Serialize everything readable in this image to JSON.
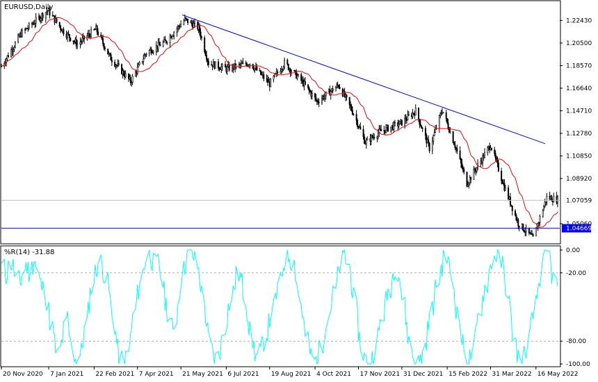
{
  "chart_data": [
    {
      "type": "candlestick",
      "title": "EURUSD,Daily",
      "symbol": "EURUSD",
      "timeframe": "Daily",
      "ylim": [
        1.034,
        1.24
      ],
      "y_ticks": [
        "1.22430",
        "1.20500",
        "1.18570",
        "1.16640",
        "1.14710",
        "1.12780",
        "1.10850",
        "1.08920",
        "1.05060"
      ],
      "x_ticks": [
        "20 Nov 2020",
        "7 Jan 2021",
        "22 Feb 2021",
        "7 Apr 2021",
        "21 May 2021",
        "6 Jul 2021",
        "19 Aug 2021",
        "4 Oct 2021",
        "17 Nov 2021",
        "31 Dec 2021",
        "15 Feb 2022",
        "31 Mar 2022",
        "16 May 2022"
      ],
      "series": [
        {
          "kind": "price",
          "points": [
            {
              "date": "20 Nov 2020",
              "close": 1.185
            },
            {
              "date": "10 Dec 2020",
              "close": 1.213
            },
            {
              "date": "6 Jan 2021",
              "close": 1.233
            },
            {
              "date": "22 Jan 2021",
              "close": 1.215
            },
            {
              "date": "5 Feb 2021",
              "close": 1.204
            },
            {
              "date": "24 Feb 2021",
              "close": 1.217
            },
            {
              "date": "10 Mar 2021",
              "close": 1.193
            },
            {
              "date": "31 Mar 2021",
              "close": 1.172
            },
            {
              "date": "16 Apr 2021",
              "close": 1.197
            },
            {
              "date": "5 May 2021",
              "close": 1.206
            },
            {
              "date": "25 May 2021",
              "close": 1.225
            },
            {
              "date": "8 Jun 2021",
              "close": 1.218
            },
            {
              "date": "18 Jun 2021",
              "close": 1.188
            },
            {
              "date": "6 Jul 2021",
              "close": 1.183
            },
            {
              "date": "30 Jul 2021",
              "close": 1.188
            },
            {
              "date": "19 Aug 2021",
              "close": 1.17
            },
            {
              "date": "3 Sep 2021",
              "close": 1.188
            },
            {
              "date": "20 Sep 2021",
              "close": 1.173
            },
            {
              "date": "6 Oct 2021",
              "close": 1.155
            },
            {
              "date": "28 Oct 2021",
              "close": 1.169
            },
            {
              "date": "12 Nov 2021",
              "close": 1.145
            },
            {
              "date": "24 Nov 2021",
              "close": 1.12
            },
            {
              "date": "8 Dec 2021",
              "close": 1.129
            },
            {
              "date": "31 Dec 2021",
              "close": 1.137
            },
            {
              "date": "14 Jan 2022",
              "close": 1.147
            },
            {
              "date": "28 Jan 2022",
              "close": 1.115
            },
            {
              "date": "10 Feb 2022",
              "close": 1.148
            },
            {
              "date": "24 Feb 2022",
              "close": 1.115
            },
            {
              "date": "7 Mar 2022",
              "close": 1.085
            },
            {
              "date": "31 Mar 2022",
              "close": 1.118
            },
            {
              "date": "14 Apr 2022",
              "close": 1.082
            },
            {
              "date": "28 Apr 2022",
              "close": 1.051
            },
            {
              "date": "13 May 2022",
              "close": 1.038
            },
            {
              "date": "27 May 2022",
              "close": 1.073
            },
            {
              "date": "7 Jun 2022",
              "close": 1.071
            }
          ]
        },
        {
          "kind": "moving_average",
          "color": "#ff0000"
        },
        {
          "kind": "trendline",
          "color": "#0000ff",
          "from": {
            "date": "21 May 2021",
            "value": 1.229
          },
          "to": {
            "date": "7 Jun 2022",
            "value": 1.119
          }
        },
        {
          "kind": "horizontal_line",
          "color": "#0000ff",
          "value": 1.04669
        }
      ],
      "current_price": "1.07059",
      "level_label": "1.04669",
      "colors": {
        "candle": "#000000",
        "ma": "#ff0000",
        "trendline": "#0000ff",
        "level": "#0000ff",
        "current_line": "#c0c0c0",
        "level_label_bg": "#0000ff"
      }
    },
    {
      "type": "line",
      "title": "%R(14) -31.88",
      "indicator": "Williams %R",
      "period": 14,
      "current_value": -31.88,
      "ylim": [
        -100,
        0
      ],
      "y_ticks": [
        "0.00",
        "-20.00",
        "-80.00",
        "-100.00"
      ],
      "levels": [
        -20,
        -80
      ],
      "color": "#00ffff",
      "series": [
        {
          "name": "",
          "values": [
            -15,
            -22,
            -8,
            -25,
            -30,
            -12,
            -20,
            -5,
            -28,
            -35,
            -50,
            -75,
            -95,
            -80,
            -60,
            -85,
            -98,
            -90,
            -70,
            -40,
            -20,
            -10,
            -18,
            -35,
            -60,
            -88,
            -100,
            -96,
            -70,
            -45,
            -25,
            -8,
            -3,
            -15,
            -10,
            -40,
            -55,
            -75,
            -45,
            -20,
            -5,
            -2,
            -12,
            -30,
            -60,
            -85,
            -98,
            -90,
            -70,
            -50,
            -35,
            -20,
            -30,
            -55,
            -80,
            -95,
            -88,
            -75,
            -60,
            -45,
            -30,
            -10,
            -3,
            -12,
            -35,
            -60,
            -82,
            -95,
            -98,
            -85,
            -65,
            -50,
            -35,
            -15,
            -5,
            -15,
            -40,
            -70,
            -92,
            -100,
            -95,
            -80,
            -60,
            -45,
            -30,
            -12,
            -25,
            -55,
            -80,
            -97,
            -100,
            -92,
            -70,
            -50,
            -30,
            -15,
            -5,
            -20,
            -45,
            -70,
            -90,
            -98,
            -85,
            -60,
            -40,
            -25,
            -8,
            -3,
            -12,
            -30,
            -60,
            -85,
            -98,
            -92,
            -75,
            -55,
            -30,
            -10,
            -2,
            -25,
            -32
          ]
        }
      ]
    }
  ]
}
